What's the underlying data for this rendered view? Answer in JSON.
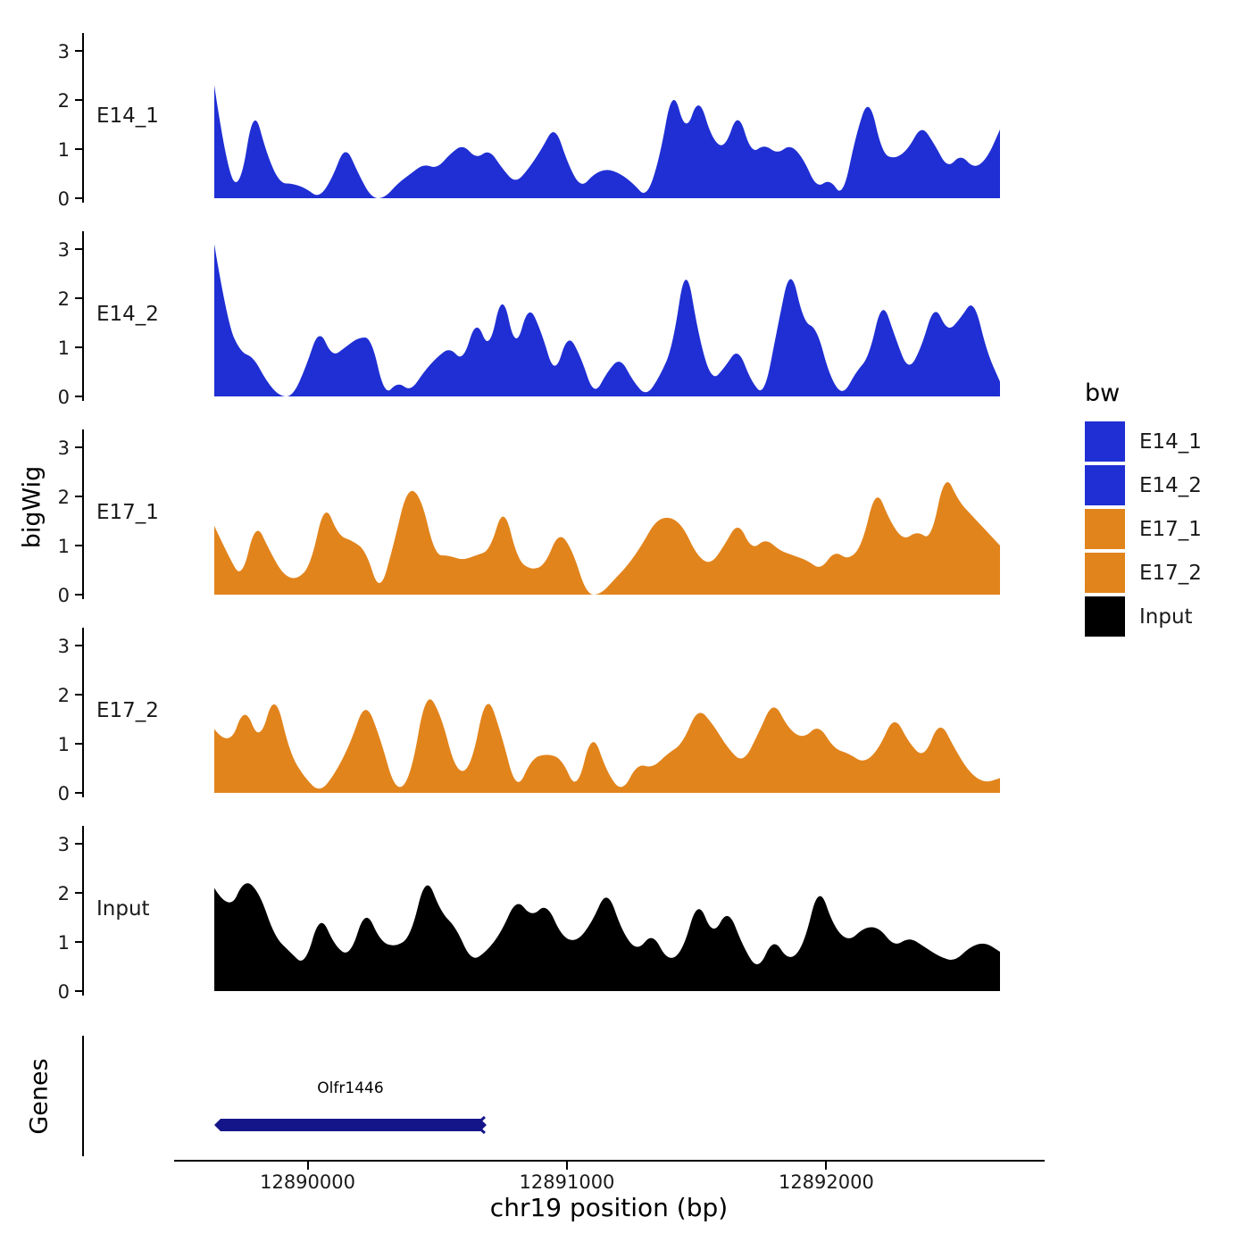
{
  "axes": {
    "y_title": "bigWig",
    "x_title": "chr19 position (bp)"
  },
  "legend": {
    "title": "bw",
    "items": [
      {
        "label": "E14_1",
        "color": "#1f2fd4"
      },
      {
        "label": "E14_2",
        "color": "#1f2fd4"
      },
      {
        "label": "E17_1",
        "color": "#e2841c"
      },
      {
        "label": "E17_2",
        "color": "#e2841c"
      },
      {
        "label": "Input",
        "color": "#000000"
      }
    ]
  },
  "genes_panel": {
    "label": "Genes",
    "items": [
      {
        "name": "Olfr1446",
        "start": 12889640,
        "end": 12890690,
        "strand": "-",
        "color": "#15158a"
      }
    ]
  },
  "chart_data": {
    "type": "area",
    "title": "",
    "x_axis": {
      "label": "chr19 position (bp)",
      "range": [
        12889640,
        12892670
      ],
      "ticks": [
        12890000,
        12891000,
        12892000
      ],
      "tick_labels": [
        "12890000",
        "12891000",
        "12892000"
      ]
    },
    "y_axis": {
      "label": "bigWig",
      "ticks": [
        0,
        1,
        2,
        3
      ],
      "range": [
        0,
        3.3
      ]
    },
    "legend_position": "right",
    "grid": false,
    "series": [
      {
        "name": "E14_1",
        "color": "#1f2fd4",
        "values": [
          2.3,
          0.5,
          0.2,
          1.9,
          0.9,
          0.3,
          0.3,
          0.2,
          0,
          0.4,
          1.1,
          0.5,
          0,
          0,
          0.3,
          0.5,
          0.7,
          0.6,
          0.9,
          1.1,
          0.8,
          1,
          0.6,
          0.3,
          0.6,
          1,
          1.5,
          0.7,
          0.2,
          0.5,
          0.6,
          0.5,
          0.3,
          0,
          0.8,
          2.3,
          1.3,
          2.1,
          1.2,
          1,
          1.8,
          0.9,
          1.1,
          0.9,
          1.1,
          0.8,
          0.2,
          0.4,
          0,
          1.3,
          2.1,
          0.9,
          0.8,
          1,
          1.5,
          1.1,
          0.6,
          0.9,
          0.6,
          0.8,
          1.4
        ]
      },
      {
        "name": "E14_2",
        "color": "#1f2fd4",
        "values": [
          3.1,
          1.5,
          0.9,
          0.8,
          0.3,
          0,
          0,
          0.6,
          1.4,
          0.8,
          1,
          1.2,
          1.2,
          0,
          0.3,
          0.1,
          0.5,
          0.8,
          1,
          0.7,
          1.6,
          0.9,
          2.2,
          0.9,
          1.9,
          1.3,
          0.4,
          1.3,
          0.8,
          0,
          0.5,
          0.8,
          0.3,
          0,
          0.4,
          1,
          2.8,
          1.2,
          0.3,
          0.6,
          1,
          0.3,
          0,
          1.4,
          2.7,
          1.5,
          1.4,
          0.4,
          0,
          0.5,
          0.8,
          2,
          1.2,
          0.5,
          1,
          1.9,
          1.3,
          1.6,
          2,
          0.9,
          0.3
        ]
      },
      {
        "name": "E17_1",
        "color": "#e2841c",
        "values": [
          1.4,
          0.8,
          0.3,
          1.5,
          0.9,
          0.4,
          0.3,
          0.6,
          1.9,
          1.2,
          1.1,
          0.9,
          0,
          1,
          2.2,
          2,
          0.8,
          0.8,
          0.7,
          0.8,
          0.9,
          1.85,
          0.7,
          0.5,
          0.6,
          1.3,
          0.9,
          0,
          0,
          0.3,
          0.6,
          1,
          1.5,
          1.6,
          1.4,
          0.8,
          0.6,
          1,
          1.5,
          0.9,
          1.15,
          0.9,
          0.8,
          0.7,
          0.5,
          0.9,
          0.7,
          1,
          2.2,
          1.5,
          1.1,
          1.3,
          1.1,
          2.5,
          1.9,
          1.6,
          1.3,
          1
        ]
      },
      {
        "name": "E17_2",
        "color": "#e2841c",
        "values": [
          1.3,
          0.9,
          1.8,
          1,
          2.1,
          0.8,
          0.3,
          0,
          0.4,
          1,
          1.9,
          1.1,
          0,
          0.3,
          2.1,
          1.6,
          0.4,
          0.5,
          2.1,
          1.2,
          0,
          0.7,
          0.8,
          0.7,
          0,
          1.3,
          0.4,
          0,
          0.6,
          0.5,
          0.8,
          1,
          1.75,
          1.4,
          0.9,
          0.6,
          1.2,
          1.9,
          1.3,
          1.1,
          1.4,
          0.9,
          0.8,
          0.6,
          0.9,
          1.6,
          1,
          0.7,
          1.5,
          0.9,
          0.4,
          0.2,
          0.3
        ]
      },
      {
        "name": "Input",
        "color": "#000000",
        "values": [
          2.1,
          1.6,
          2.3,
          2,
          1.1,
          0.8,
          0.5,
          1.6,
          0.9,
          0.7,
          1.7,
          1,
          0.9,
          1.1,
          2.4,
          1.6,
          1.3,
          0.6,
          0.8,
          1.2,
          1.9,
          1.5,
          1.8,
          1.1,
          1,
          1.4,
          2.1,
          1.2,
          0.8,
          1.2,
          0.6,
          0.8,
          1.9,
          1.1,
          1.7,
          0.9,
          0.4,
          1.1,
          0.6,
          0.9,
          2.2,
          1.3,
          1,
          1.3,
          1.3,
          0.9,
          1.1,
          0.9,
          0.7,
          0.6,
          0.9,
          1,
          0.8
        ]
      }
    ]
  }
}
